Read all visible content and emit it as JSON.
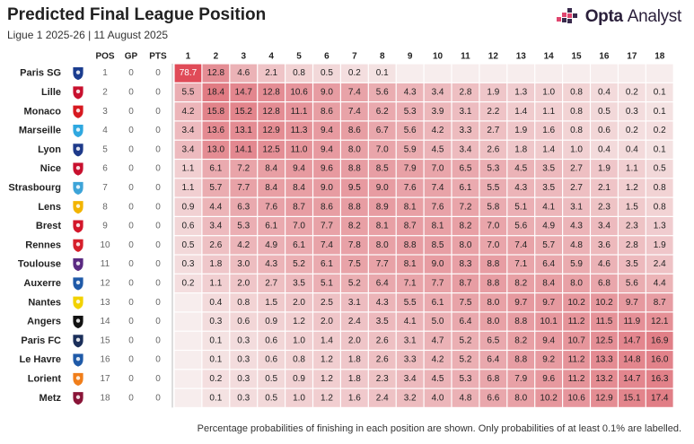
{
  "header": {
    "title": "Predicted Final League Position",
    "subtitle": "Ligue 1 2025-26 | 11 August 2025",
    "logo_word1": "Opta",
    "logo_word2": "Analyst"
  },
  "footnote": "Percentage probabilities of finishing in each position are shown. Only probabilities of at least 0.1% are labelled.",
  "chart_data": {
    "type": "heatmap",
    "title": "Predicted Final League Position",
    "subtitle": "Ligue 1 2025-26 | 11 August 2025",
    "columns": [
      "POS",
      "GP",
      "PTS"
    ],
    "x": [
      "1",
      "2",
      "3",
      "4",
      "5",
      "6",
      "7",
      "8",
      "9",
      "10",
      "11",
      "12",
      "13",
      "14",
      "15",
      "16",
      "17",
      "18"
    ],
    "teams": [
      {
        "name": "Paris SG",
        "pos": 1,
        "gp": 0,
        "pts": 0,
        "values": [
          78.7,
          12.8,
          4.6,
          2.1,
          0.8,
          0.5,
          0.2,
          0.1,
          null,
          null,
          null,
          null,
          null,
          null,
          null,
          null,
          null,
          null
        ]
      },
      {
        "name": "Lille",
        "pos": 2,
        "gp": 0,
        "pts": 0,
        "values": [
          5.5,
          18.4,
          14.7,
          12.8,
          10.6,
          9.0,
          7.4,
          5.6,
          4.3,
          3.4,
          2.8,
          1.9,
          1.3,
          1.0,
          0.8,
          0.4,
          0.2,
          0.1
        ]
      },
      {
        "name": "Monaco",
        "pos": 3,
        "gp": 0,
        "pts": 0,
        "values": [
          4.2,
          15.8,
          15.2,
          12.8,
          11.1,
          8.6,
          7.4,
          6.2,
          5.3,
          3.9,
          3.1,
          2.2,
          1.4,
          1.1,
          0.8,
          0.5,
          0.3,
          0.1
        ]
      },
      {
        "name": "Marseille",
        "pos": 4,
        "gp": 0,
        "pts": 0,
        "values": [
          3.4,
          13.6,
          13.1,
          12.9,
          11.3,
          9.4,
          8.6,
          6.7,
          5.6,
          4.2,
          3.3,
          2.7,
          1.9,
          1.6,
          0.8,
          0.6,
          0.2,
          0.2
        ]
      },
      {
        "name": "Lyon",
        "pos": 5,
        "gp": 0,
        "pts": 0,
        "values": [
          3.4,
          13.0,
          14.1,
          12.5,
          11.0,
          9.4,
          8.0,
          7.0,
          5.9,
          4.5,
          3.4,
          2.6,
          1.8,
          1.4,
          1.0,
          0.4,
          0.4,
          0.1
        ]
      },
      {
        "name": "Nice",
        "pos": 6,
        "gp": 0,
        "pts": 0,
        "values": [
          1.1,
          6.1,
          7.2,
          8.4,
          9.4,
          9.6,
          8.8,
          8.5,
          7.9,
          7.0,
          6.5,
          5.3,
          4.5,
          3.5,
          2.7,
          1.9,
          1.1,
          0.5
        ]
      },
      {
        "name": "Strasbourg",
        "pos": 7,
        "gp": 0,
        "pts": 0,
        "values": [
          1.1,
          5.7,
          7.7,
          8.4,
          8.4,
          9.0,
          9.5,
          9.0,
          7.6,
          7.4,
          6.1,
          5.5,
          4.3,
          3.5,
          2.7,
          2.1,
          1.2,
          0.8
        ]
      },
      {
        "name": "Lens",
        "pos": 8,
        "gp": 0,
        "pts": 0,
        "values": [
          0.9,
          4.4,
          6.3,
          7.6,
          8.7,
          8.6,
          8.8,
          8.9,
          8.1,
          7.6,
          7.2,
          5.8,
          5.1,
          4.1,
          3.1,
          2.3,
          1.5,
          0.8
        ]
      },
      {
        "name": "Brest",
        "pos": 9,
        "gp": 0,
        "pts": 0,
        "values": [
          0.6,
          3.4,
          5.3,
          6.1,
          7.0,
          7.7,
          8.2,
          8.1,
          8.7,
          8.1,
          8.2,
          7.0,
          5.6,
          4.9,
          4.3,
          3.4,
          2.3,
          1.3
        ]
      },
      {
        "name": "Rennes",
        "pos": 10,
        "gp": 0,
        "pts": 0,
        "values": [
          0.5,
          2.6,
          4.2,
          4.9,
          6.1,
          7.4,
          7.8,
          8.0,
          8.8,
          8.5,
          8.0,
          7.0,
          7.4,
          5.7,
          4.8,
          3.6,
          2.8,
          1.9
        ]
      },
      {
        "name": "Toulouse",
        "pos": 11,
        "gp": 0,
        "pts": 0,
        "values": [
          0.3,
          1.8,
          3.0,
          4.3,
          5.2,
          6.1,
          7.5,
          7.7,
          8.1,
          9.0,
          8.3,
          8.8,
          7.1,
          6.4,
          5.9,
          4.6,
          3.5,
          2.4
        ]
      },
      {
        "name": "Auxerre",
        "pos": 12,
        "gp": 0,
        "pts": 0,
        "values": [
          0.2,
          1.1,
          2.0,
          2.7,
          3.5,
          5.1,
          5.2,
          6.4,
          7.1,
          7.7,
          8.7,
          8.8,
          8.2,
          8.4,
          8.0,
          6.8,
          5.6,
          4.4
        ]
      },
      {
        "name": "Nantes",
        "pos": 13,
        "gp": 0,
        "pts": 0,
        "values": [
          null,
          0.4,
          0.8,
          1.5,
          2.0,
          2.5,
          3.1,
          4.3,
          5.5,
          6.1,
          7.5,
          8.0,
          9.7,
          9.7,
          10.2,
          10.2,
          9.7,
          8.7
        ]
      },
      {
        "name": "Angers",
        "pos": 14,
        "gp": 0,
        "pts": 0,
        "values": [
          null,
          0.3,
          0.6,
          0.9,
          1.2,
          2.0,
          2.4,
          3.5,
          4.1,
          5.0,
          6.4,
          8.0,
          8.8,
          10.1,
          11.2,
          11.5,
          11.9,
          12.1
        ]
      },
      {
        "name": "Paris FC",
        "pos": 15,
        "gp": 0,
        "pts": 0,
        "values": [
          null,
          0.1,
          0.3,
          0.6,
          1.0,
          1.4,
          2.0,
          2.6,
          3.1,
          4.7,
          5.2,
          6.5,
          8.2,
          9.4,
          10.7,
          12.5,
          14.7,
          16.9
        ]
      },
      {
        "name": "Le Havre",
        "pos": 16,
        "gp": 0,
        "pts": 0,
        "values": [
          null,
          0.1,
          0.3,
          0.6,
          0.8,
          1.2,
          1.8,
          2.6,
          3.3,
          4.2,
          5.2,
          6.4,
          8.8,
          9.2,
          11.2,
          13.3,
          14.8,
          16.0
        ]
      },
      {
        "name": "Lorient",
        "pos": 17,
        "gp": 0,
        "pts": 0,
        "values": [
          null,
          0.2,
          0.3,
          0.5,
          0.9,
          1.2,
          1.8,
          2.3,
          3.4,
          4.5,
          5.3,
          6.8,
          7.9,
          9.6,
          11.2,
          13.2,
          14.7,
          16.3
        ]
      },
      {
        "name": "Metz",
        "pos": 18,
        "gp": 0,
        "pts": 0,
        "values": [
          null,
          0.1,
          0.3,
          0.5,
          1.0,
          1.2,
          1.6,
          2.4,
          3.2,
          4.0,
          4.8,
          6.6,
          8.0,
          10.2,
          10.6,
          12.9,
          15.1,
          17.4
        ]
      }
    ],
    "colors": {
      "cell_low": "#f6eaea",
      "cell_high": "#d9535e",
      "top_cell": "#e04b58",
      "empty_cell": "#f7eded",
      "text": "#222222",
      "light_text": "#666666"
    },
    "badge_colors": [
      "#1b3d8f",
      "#c8102e",
      "#d71920",
      "#2fa8e0",
      "#1e3a8a",
      "#c8102e",
      "#3da4d8",
      "#f2b400",
      "#d3172b",
      "#d6202b",
      "#5a2a82",
      "#1f5aa8",
      "#f2d200",
      "#111111",
      "#1b2f5a",
      "#1f5aa8",
      "#f07e1a",
      "#8a1538"
    ]
  }
}
